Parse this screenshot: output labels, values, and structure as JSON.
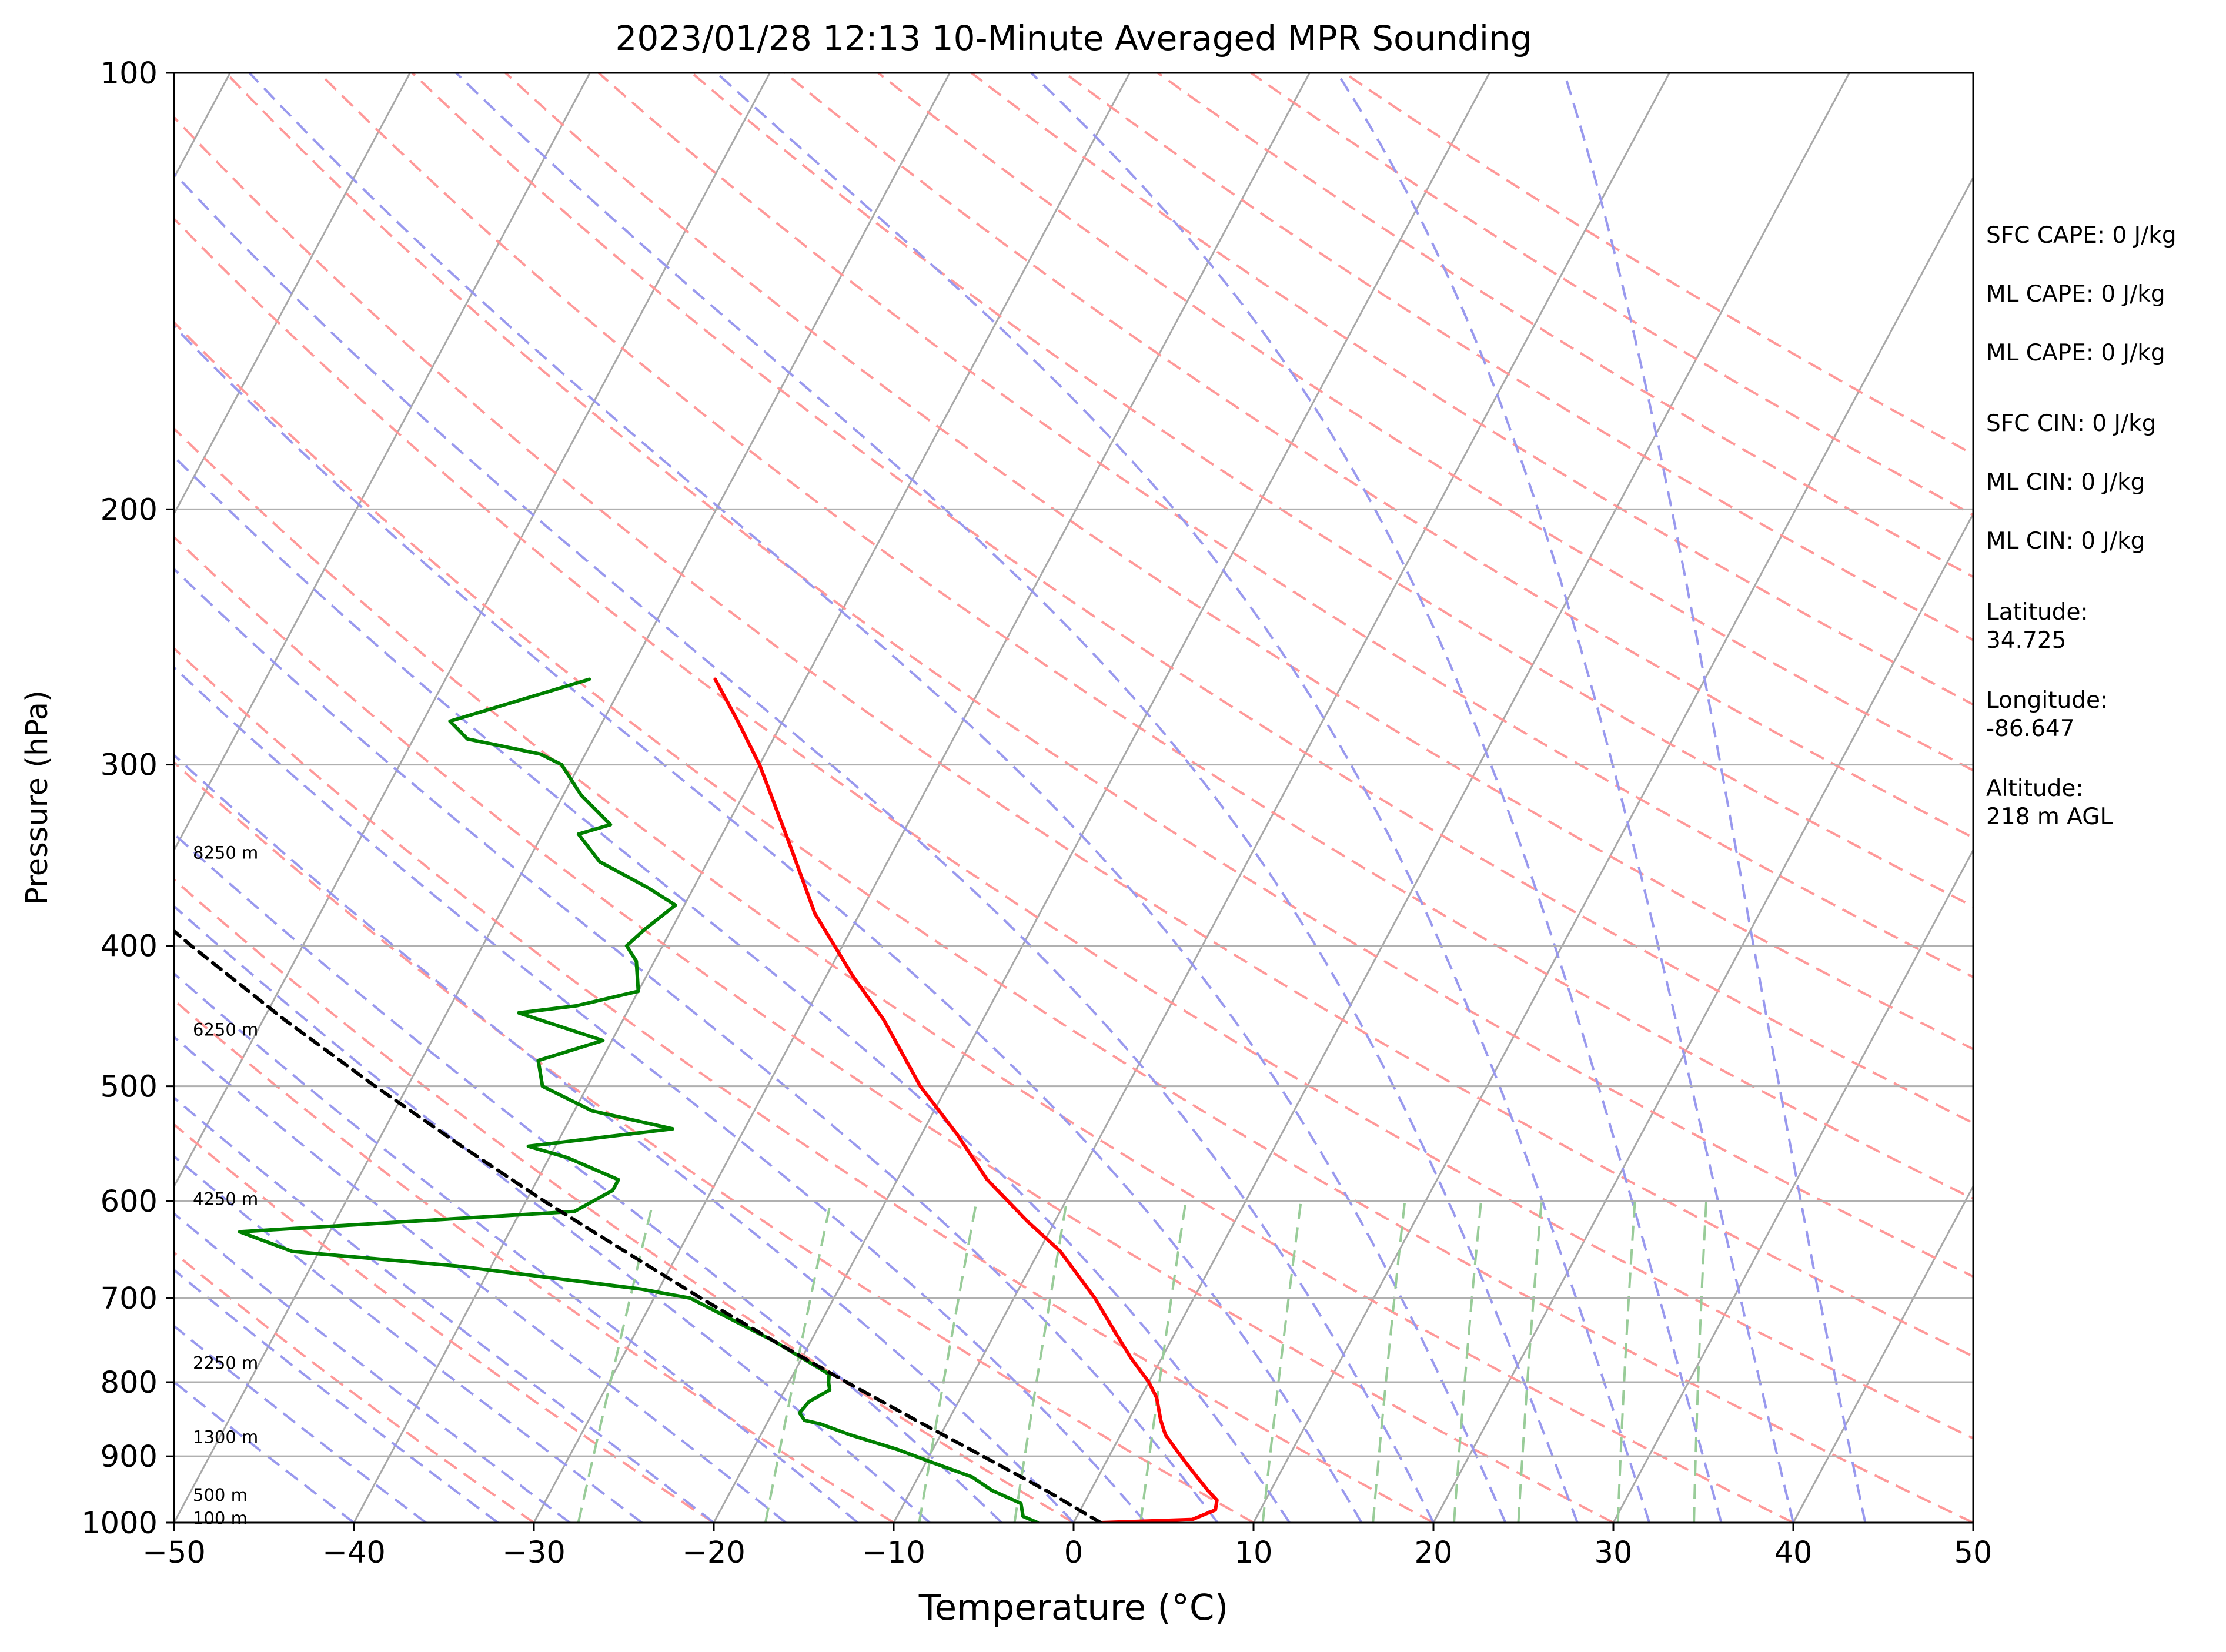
{
  "chart_data": {
    "type": "line",
    "title": "2023/01/28 12:13 10-Minute Averaged MPR Sounding",
    "xlabel": "Temperature (°C)",
    "ylabel": "Pressure (hPa)",
    "xlim": [
      -50,
      50
    ],
    "ylim": [
      1000,
      100
    ],
    "y_scale": "log",
    "skew_t": true,
    "x_ticks": [
      "−50",
      "−40",
      "−30",
      "−20",
      "−10",
      "0",
      "10",
      "20",
      "30",
      "40",
      "50"
    ],
    "y_ticks": [
      "100",
      "200",
      "300",
      "400",
      "500",
      "600",
      "700",
      "800",
      "900",
      "1000"
    ],
    "y_grid_levels": [
      100,
      200,
      300,
      400,
      500,
      600,
      700,
      800,
      900,
      1000
    ],
    "height_labels": [
      {
        "text": "8250 m",
        "p": 345
      },
      {
        "text": "6250 m",
        "p": 457
      },
      {
        "text": "4250 m",
        "p": 598
      },
      {
        "text": "2250 m",
        "p": 776
      },
      {
        "text": "1300 m",
        "p": 873
      },
      {
        "text": "500 m",
        "p": 957
      },
      {
        "text": "100 m",
        "p": 993
      }
    ],
    "series": [
      {
        "color": "#ff0000",
        "points": [
          [
            1000,
            1.5
          ],
          [
            995,
            6.5
          ],
          [
            980,
            7.5
          ],
          [
            965,
            7.3
          ],
          [
            950,
            6.5
          ],
          [
            930,
            5.5
          ],
          [
            910,
            4.5
          ],
          [
            890,
            3.5
          ],
          [
            870,
            2.5
          ],
          [
            850,
            1.8
          ],
          [
            820,
            0.9
          ],
          [
            800,
            0.0
          ],
          [
            770,
            -1.7
          ],
          [
            740,
            -3.3
          ],
          [
            700,
            -5.5
          ],
          [
            650,
            -8.8
          ],
          [
            620,
            -11.5
          ],
          [
            580,
            -15.0
          ],
          [
            540,
            -18.0
          ],
          [
            500,
            -21.5
          ],
          [
            450,
            -25.5
          ],
          [
            420,
            -28.5
          ],
          [
            380,
            -32.5
          ],
          [
            340,
            -36.0
          ],
          [
            300,
            -40.0
          ],
          [
            280,
            -42.5
          ],
          [
            262,
            -45.0
          ]
        ]
      },
      {
        "color": "#008000",
        "points": [
          [
            1000,
            -2.0
          ],
          [
            990,
            -3.0
          ],
          [
            970,
            -3.5
          ],
          [
            950,
            -5.5
          ],
          [
            930,
            -7.0
          ],
          [
            910,
            -9.5
          ],
          [
            890,
            -12.0
          ],
          [
            870,
            -15.0
          ],
          [
            855,
            -17.0
          ],
          [
            850,
            -18.0
          ],
          [
            840,
            -18.5
          ],
          [
            825,
            -18.3
          ],
          [
            810,
            -17.5
          ],
          [
            800,
            -17.8
          ],
          [
            790,
            -18.0
          ],
          [
            750,
            -22.0
          ],
          [
            700,
            -28.0
          ],
          [
            690,
            -31.0
          ],
          [
            665,
            -42.0
          ],
          [
            650,
            -51.5
          ],
          [
            630,
            -55.0
          ],
          [
            610,
            -37.0
          ],
          [
            590,
            -35.5
          ],
          [
            580,
            -35.5
          ],
          [
            560,
            -39.0
          ],
          [
            550,
            -41.5
          ],
          [
            535,
            -34.0
          ],
          [
            520,
            -39.0
          ],
          [
            500,
            -42.5
          ],
          [
            480,
            -43.5
          ],
          [
            465,
            -40.5
          ],
          [
            445,
            -46.0
          ],
          [
            440,
            -43.0
          ],
          [
            430,
            -40.0
          ],
          [
            410,
            -41.0
          ],
          [
            400,
            -42.0
          ],
          [
            390,
            -41.5
          ],
          [
            375,
            -40.5
          ],
          [
            365,
            -42.5
          ],
          [
            350,
            -46.0
          ],
          [
            335,
            -48.0
          ],
          [
            330,
            -46.5
          ],
          [
            315,
            -49.0
          ],
          [
            300,
            -51.0
          ],
          [
            295,
            -52.5
          ],
          [
            288,
            -57.0
          ],
          [
            280,
            -58.5
          ],
          [
            262,
            -52.0
          ]
        ]
      },
      {
        "color": "#000000",
        "dashed": true,
        "points": [
          [
            1000,
            1.5
          ],
          [
            950,
            -2.5
          ],
          [
            900,
            -7.0
          ],
          [
            850,
            -11.8
          ],
          [
            800,
            -16.8
          ],
          [
            750,
            -22.0
          ],
          [
            700,
            -27.4
          ],
          [
            650,
            -33.0
          ],
          [
            600,
            -39.0
          ],
          [
            550,
            -45.2
          ],
          [
            500,
            -51.8
          ],
          [
            450,
            -58.8
          ],
          [
            400,
            -66.2
          ],
          [
            350,
            -74.2
          ],
          [
            300,
            -83.0
          ],
          [
            280,
            -86.8
          ]
        ]
      }
    ],
    "background_lines": {
      "isotherms_every_C": 10,
      "dry_adiabats_color": "#ff9999",
      "moist_adiabats_color": "#9999ee",
      "mixing_ratio_color": "#99cc99"
    }
  },
  "info": {
    "sfc_cape": "SFC CAPE: 0 J/kg",
    "ml_cape_1": "ML CAPE: 0 J/kg",
    "ml_cape_2": "ML CAPE: 0 J/kg",
    "sfc_cin": "SFC CIN: 0 J/kg",
    "ml_cin_1": "ML CIN: 0 J/kg",
    "ml_cin_2": "ML CIN: 0 J/kg",
    "latitude": "Latitude:\n34.725",
    "longitude": "Longitude:\n-86.647",
    "altitude": "Altitude:\n218 m AGL"
  }
}
